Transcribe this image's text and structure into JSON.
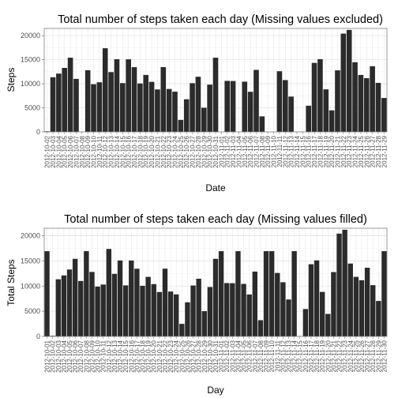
{
  "colors": {
    "bar": "#2b2b2b",
    "panel_border": "#7f7f7f",
    "grid_major": "#e3e3e3",
    "grid_minor": "#f2f2f2",
    "tick_text": "#4d4d4d"
  },
  "chart_data": [
    {
      "type": "bar",
      "title": "Total number of steps taken each day (Missing values excluded)",
      "xlabel": "Date",
      "ylabel": "Steps",
      "ylim": [
        0,
        21500
      ],
      "yticks": [
        0,
        5000,
        10000,
        15000,
        20000
      ],
      "grid": true,
      "categories": [
        "2012-10-02",
        "2012-10-03",
        "2012-10-04",
        "2012-10-05",
        "2012-10-06",
        "2012-10-07",
        "2012-10-09",
        "2012-10-10",
        "2012-10-11",
        "2012-10-12",
        "2012-10-13",
        "2012-10-14",
        "2012-10-15",
        "2012-10-16",
        "2012-10-17",
        "2012-10-18",
        "2012-10-19",
        "2012-10-20",
        "2012-10-21",
        "2012-10-22",
        "2012-10-23",
        "2012-10-24",
        "2012-10-25",
        "2012-10-26",
        "2012-10-27",
        "2012-10-28",
        "2012-10-29",
        "2012-10-30",
        "2012-10-31",
        "2012-11-02",
        "2012-11-03",
        "2012-11-05",
        "2012-11-06",
        "2012-11-07",
        "2012-11-08",
        "2012-11-11",
        "2012-11-12",
        "2012-11-13",
        "2012-11-15",
        "2012-11-16",
        "2012-11-17",
        "2012-11-18",
        "2012-11-19",
        "2012-11-20",
        "2012-11-21",
        "2012-11-22",
        "2012-11-23",
        "2012-11-24",
        "2012-11-25",
        "2012-11-26",
        "2012-11-27",
        "2012-11-28",
        "2012-11-29"
      ],
      "axis_dates": [
        "2012-10-02",
        "2012-10-03",
        "2012-10-04",
        "2012-10-05",
        "2012-10-06",
        "2012-10-07",
        "2012-10-08",
        "2012-10-09",
        "2012-10-10",
        "2012-10-11",
        "2012-10-12",
        "2012-10-13",
        "2012-10-14",
        "2012-10-15",
        "2012-10-16",
        "2012-10-17",
        "2012-10-18",
        "2012-10-19",
        "2012-10-20",
        "2012-10-21",
        "2012-10-22",
        "2012-10-23",
        "2012-10-24",
        "2012-10-25",
        "2012-10-26",
        "2012-10-27",
        "2012-10-28",
        "2012-10-29",
        "2012-10-30",
        "2012-10-31",
        "2012-11-01",
        "2012-11-02",
        "2012-11-03",
        "2012-11-04",
        "2012-11-05",
        "2012-11-06",
        "2012-11-07",
        "2012-11-08",
        "2012-11-09",
        "2012-11-10",
        "2012-11-11",
        "2012-11-12",
        "2012-11-13",
        "2012-11-14",
        "2012-11-15",
        "2012-11-16",
        "2012-11-17",
        "2012-11-18",
        "2012-11-19",
        "2012-11-20",
        "2012-11-21",
        "2012-11-22",
        "2012-11-23",
        "2012-11-24",
        "2012-11-25",
        "2012-11-26",
        "2012-11-27",
        "2012-11-28",
        "2012-11-29"
      ],
      "values": [
        126,
        11352,
        12116,
        13294,
        15420,
        11015,
        12811,
        9900,
        10304,
        17382,
        12426,
        15098,
        10139,
        15084,
        13452,
        10056,
        11829,
        10395,
        8821,
        13460,
        8918,
        8355,
        2492,
        6778,
        10119,
        11458,
        5018,
        9819,
        15414,
        10600,
        10571,
        10439,
        8334,
        12883,
        3219,
        12608,
        10765,
        7336,
        41,
        5441,
        14339,
        15110,
        8841,
        4472,
        12787,
        20427,
        21194,
        14478,
        11834,
        11162,
        13646,
        10183,
        7047
      ]
    },
    {
      "type": "bar",
      "title": "Total number of steps taken each day (Missing values filled)",
      "xlabel": "Day",
      "ylabel": "Total Steps",
      "ylim": [
        0,
        21500
      ],
      "yticks": [
        0,
        5000,
        10000,
        15000,
        20000
      ],
      "grid": true,
      "categories": [
        "2012-10-01",
        "2012-10-02",
        "2012-10-03",
        "2012-10-04",
        "2012-10-05",
        "2012-10-06",
        "2012-10-07",
        "2012-10-08",
        "2012-10-09",
        "2012-10-10",
        "2012-10-11",
        "2012-10-12",
        "2012-10-13",
        "2012-10-14",
        "2012-10-15",
        "2012-10-16",
        "2012-10-17",
        "2012-10-18",
        "2012-10-19",
        "2012-10-20",
        "2012-10-21",
        "2012-10-22",
        "2012-10-23",
        "2012-10-24",
        "2012-10-25",
        "2012-10-26",
        "2012-10-27",
        "2012-10-28",
        "2012-10-29",
        "2012-10-30",
        "2012-10-31",
        "2012-11-01",
        "2012-11-02",
        "2012-11-03",
        "2012-11-04",
        "2012-11-05",
        "2012-11-06",
        "2012-11-07",
        "2012-11-08",
        "2012-11-09",
        "2012-11-10",
        "2012-11-11",
        "2012-11-12",
        "2012-11-13",
        "2012-11-14",
        "2012-11-15",
        "2012-11-16",
        "2012-11-17",
        "2012-11-18",
        "2012-11-19",
        "2012-11-20",
        "2012-11-21",
        "2012-11-22",
        "2012-11-23",
        "2012-11-24",
        "2012-11-25",
        "2012-11-26",
        "2012-11-27",
        "2012-11-28",
        "2012-11-29",
        "2012-11-30"
      ],
      "axis_dates": [
        "2012-10-01",
        "2012-10-02",
        "2012-10-03",
        "2012-10-04",
        "2012-10-05",
        "2012-10-06",
        "2012-10-07",
        "2012-10-08",
        "2012-10-09",
        "2012-10-10",
        "2012-10-11",
        "2012-10-12",
        "2012-10-13",
        "2012-10-14",
        "2012-10-15",
        "2012-10-16",
        "2012-10-17",
        "2012-10-18",
        "2012-10-19",
        "2012-10-20",
        "2012-10-21",
        "2012-10-22",
        "2012-10-23",
        "2012-10-24",
        "2012-10-25",
        "2012-10-26",
        "2012-10-27",
        "2012-10-28",
        "2012-10-29",
        "2012-10-30",
        "2012-10-31",
        "2012-11-01",
        "2012-11-02",
        "2012-11-03",
        "2012-11-04",
        "2012-11-05",
        "2012-11-06",
        "2012-11-07",
        "2012-11-08",
        "2012-11-09",
        "2012-11-10",
        "2012-11-11",
        "2012-11-12",
        "2012-11-13",
        "2012-11-14",
        "2012-11-15",
        "2012-11-16",
        "2012-11-17",
        "2012-11-18",
        "2012-11-19",
        "2012-11-20",
        "2012-11-21",
        "2012-11-22",
        "2012-11-23",
        "2012-11-24",
        "2012-11-25",
        "2012-11-26",
        "2012-11-27",
        "2012-11-28",
        "2012-11-29",
        "2012-11-30"
      ],
      "values": [
        16940,
        126,
        11352,
        12116,
        13294,
        15420,
        11015,
        16940,
        12811,
        9900,
        10304,
        17382,
        12426,
        15098,
        10139,
        15084,
        13452,
        10056,
        11829,
        10395,
        8821,
        13460,
        8918,
        8355,
        2492,
        6778,
        10119,
        11458,
        5018,
        9819,
        15414,
        16940,
        10600,
        10571,
        16940,
        10439,
        8334,
        12883,
        3219,
        16940,
        16940,
        12608,
        10765,
        7336,
        16940,
        41,
        5441,
        14339,
        15110,
        8841,
        4472,
        12787,
        20427,
        21194,
        14478,
        11834,
        11162,
        13646,
        10183,
        7047,
        16940
      ]
    }
  ]
}
